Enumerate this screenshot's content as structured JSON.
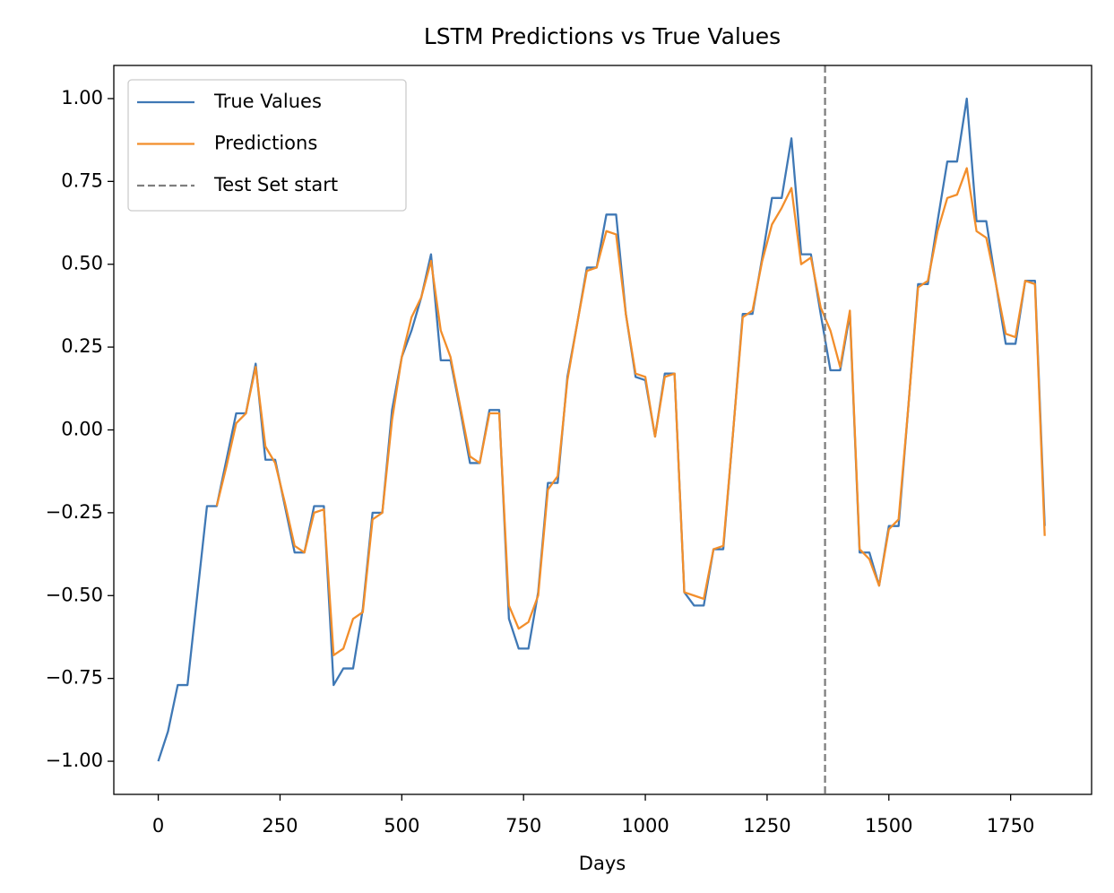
{
  "chart_data": {
    "type": "line",
    "title": "LSTM Predictions vs True Values",
    "x_label": "Days",
    "x": [
      0,
      20,
      40,
      60,
      80,
      100,
      120,
      140,
      160,
      180,
      200,
      220,
      240,
      260,
      280,
      300,
      320,
      340,
      360,
      380,
      400,
      420,
      440,
      460,
      480,
      500,
      520,
      540,
      560,
      580,
      600,
      620,
      640,
      660,
      680,
      700,
      720,
      740,
      760,
      780,
      800,
      820,
      840,
      860,
      880,
      900,
      920,
      940,
      960,
      980,
      1000,
      1020,
      1040,
      1060,
      1080,
      1100,
      1120,
      1140,
      1160,
      1180,
      1200,
      1220,
      1240,
      1260,
      1280,
      1300,
      1320,
      1340,
      1360,
      1380,
      1400,
      1420,
      1440,
      1460,
      1480,
      1500,
      1520,
      1540,
      1560,
      1580,
      1600,
      1620,
      1640,
      1660,
      1680,
      1700,
      1720,
      1740,
      1760,
      1780,
      1800,
      1820
    ],
    "series": [
      {
        "name": "True Values",
        "color": "#3f78b5",
        "values": [
          -1.0,
          -0.91,
          -0.77,
          -0.77,
          -0.5,
          -0.23,
          -0.23,
          -0.09,
          0.05,
          0.05,
          0.2,
          -0.09,
          -0.09,
          -0.23,
          -0.37,
          -0.37,
          -0.23,
          -0.23,
          -0.77,
          -0.72,
          -0.72,
          -0.54,
          -0.25,
          -0.25,
          0.06,
          0.22,
          0.3,
          0.4,
          0.53,
          0.21,
          0.21,
          0.06,
          -0.1,
          -0.1,
          0.06,
          0.06,
          -0.57,
          -0.66,
          -0.66,
          -0.49,
          -0.16,
          -0.16,
          0.16,
          0.32,
          0.49,
          0.49,
          0.65,
          0.65,
          0.35,
          0.16,
          0.15,
          -0.02,
          0.17,
          0.17,
          -0.49,
          -0.53,
          -0.53,
          -0.36,
          -0.36,
          -0.01,
          0.35,
          0.35,
          0.52,
          0.7,
          0.7,
          0.88,
          0.53,
          0.53,
          0.35,
          0.18,
          0.18,
          0.35,
          -0.37,
          -0.37,
          -0.47,
          -0.29,
          -0.29,
          0.07,
          0.44,
          0.44,
          0.63,
          0.81,
          0.81,
          1.0,
          0.63,
          0.63,
          0.44,
          0.26,
          0.26,
          0.45,
          0.45,
          -0.29
        ]
      },
      {
        "name": "Predictions",
        "color": "#f28e2b",
        "values": [
          null,
          null,
          null,
          null,
          null,
          null,
          -0.23,
          -0.11,
          0.02,
          0.05,
          0.19,
          -0.05,
          -0.1,
          -0.22,
          -0.35,
          -0.37,
          -0.25,
          -0.24,
          -0.68,
          -0.66,
          -0.57,
          -0.55,
          -0.27,
          -0.25,
          0.03,
          0.22,
          0.34,
          0.4,
          0.51,
          0.3,
          0.22,
          0.07,
          -0.08,
          -0.1,
          0.05,
          0.05,
          -0.53,
          -0.6,
          -0.58,
          -0.5,
          -0.18,
          -0.14,
          0.15,
          0.32,
          0.48,
          0.49,
          0.6,
          0.59,
          0.35,
          0.17,
          0.16,
          -0.02,
          0.16,
          0.17,
          -0.49,
          -0.5,
          -0.51,
          -0.36,
          -0.35,
          -0.01,
          0.34,
          0.36,
          0.51,
          0.62,
          0.67,
          0.73,
          0.5,
          0.52,
          0.37,
          0.3,
          0.19,
          0.36,
          -0.36,
          -0.39,
          -0.47,
          -0.3,
          -0.27,
          0.07,
          0.43,
          0.45,
          0.6,
          0.7,
          0.71,
          0.79,
          0.6,
          0.58,
          0.44,
          0.29,
          0.28,
          0.45,
          0.44,
          -0.32
        ]
      }
    ],
    "vline": {
      "name": "Test Set start",
      "x": 1369,
      "color": "#7f7f7f"
    },
    "xlim": [
      -91.25,
      1916.25
    ],
    "ylim": [
      -1.1,
      1.1
    ],
    "xticks": [
      0,
      250,
      500,
      750,
      1000,
      1250,
      1500,
      1750
    ],
    "yticks": [
      {
        "value": -1,
        "label": "−1.00"
      },
      {
        "value": -0.75,
        "label": "−0.75"
      },
      {
        "value": -0.5,
        "label": "−0.50"
      },
      {
        "value": -0.25,
        "label": "−0.25"
      },
      {
        "value": 0,
        "label": "0.00"
      },
      {
        "value": 0.25,
        "label": "0.25"
      },
      {
        "value": 0.5,
        "label": "0.50"
      },
      {
        "value": 0.75,
        "label": "0.75"
      },
      {
        "value": 1,
        "label": "1.00"
      }
    ],
    "legend": "upper left",
    "grid": false
  }
}
